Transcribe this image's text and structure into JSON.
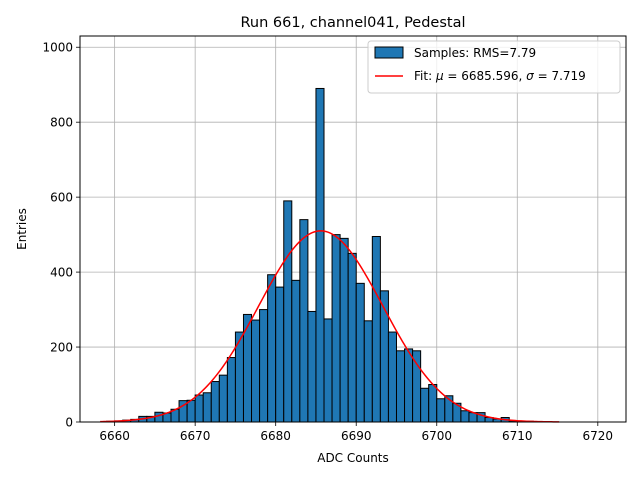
{
  "chart_data": {
    "type": "bar",
    "title": "Run 661, channel041, Pedestal",
    "xlabel": "ADC Counts",
    "ylabel": "Entries",
    "xlim": [
      6655.7,
      6723.5
    ],
    "ylim": [
      0,
      1030
    ],
    "xticks": [
      6660,
      6670,
      6680,
      6690,
      6700,
      6710,
      6720
    ],
    "yticks": [
      0,
      200,
      400,
      600,
      800,
      1000
    ],
    "grid": true,
    "legend_position": "top-right",
    "histogram": {
      "name": "Samples: RMS=7.79",
      "color": "#1f77b4",
      "edge_color": "#000000",
      "bin_start": 6659,
      "bin_width": 1,
      "counts": [
        2,
        3,
        5,
        7,
        15,
        15,
        26,
        24,
        34,
        57,
        58,
        72,
        78,
        108,
        125,
        172,
        240,
        287,
        272,
        300,
        393,
        360,
        590,
        378,
        540,
        295,
        890,
        275,
        500,
        490,
        450,
        370,
        270,
        495,
        350,
        240,
        190,
        195,
        190,
        90,
        100,
        62,
        70,
        50,
        30,
        25,
        25,
        12,
        8,
        12,
        3,
        2,
        2
      ]
    },
    "fit": {
      "name": "Fit: μ = 6685.596, σ = 7.719",
      "name_parts": [
        "Fit: ",
        "μ",
        " = 6685.596, ",
        "σ",
        " = 7.719"
      ],
      "color": "#ff0000",
      "mu": 6685.596,
      "sigma": 7.719,
      "peak": 510,
      "x_range": [
        6658.2,
        6715.2
      ]
    }
  }
}
